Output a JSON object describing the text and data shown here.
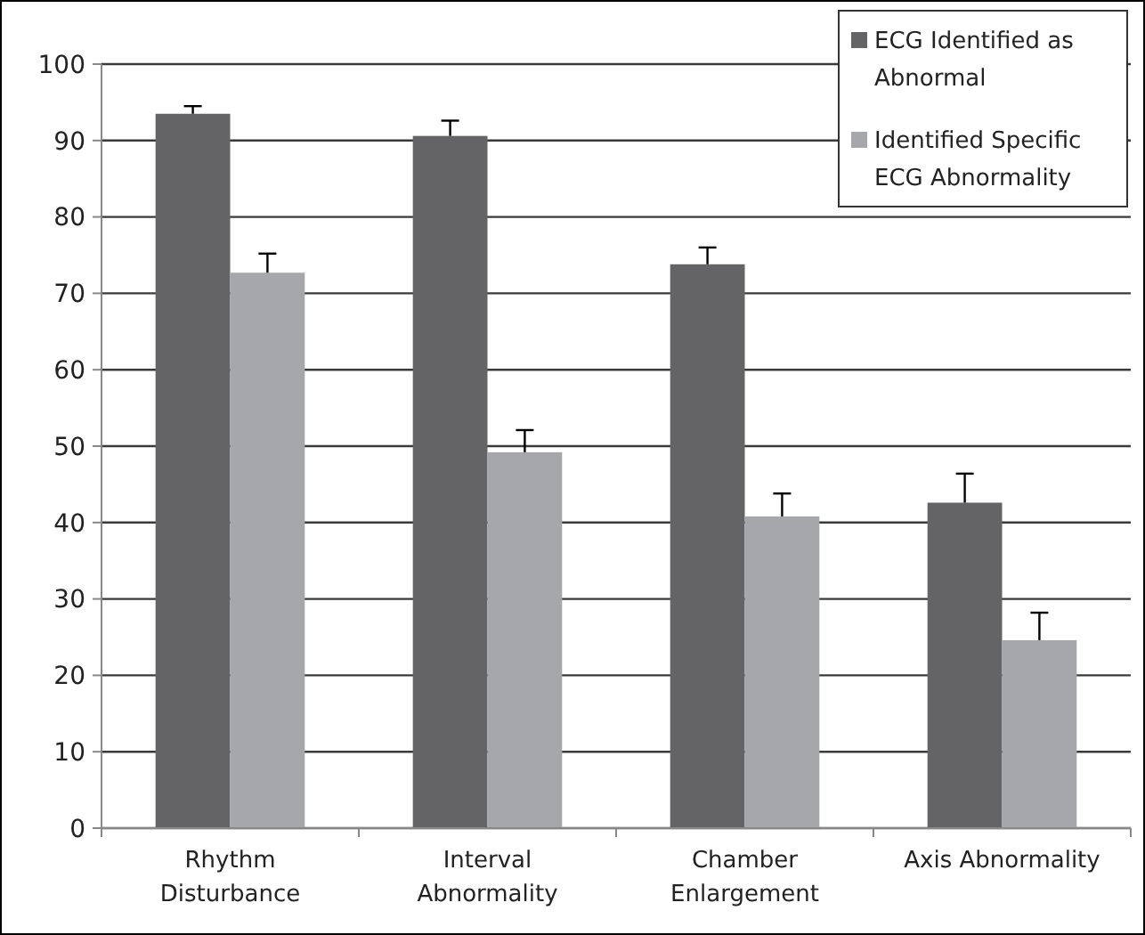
{
  "chart_data": {
    "type": "bar",
    "categories": [
      "Rhythm Disturbance",
      "Interval Abnormality",
      "Chamber Enlargement",
      "Axis Abnormality"
    ],
    "series": [
      {
        "name": "ECG Identified as Abnormal",
        "color": "#646466",
        "values": [
          93.5,
          90.6,
          73.8,
          42.6
        ],
        "errors": [
          [
            93.5,
            94.5
          ],
          [
            90.6,
            92.6
          ],
          [
            73.8,
            76
          ],
          [
            42.6,
            46.4
          ]
        ]
      },
      {
        "name": "Identified Specific ECG Abnormality",
        "color": "#a6a7aa",
        "values": [
          72.7,
          49.2,
          40.8,
          24.6
        ],
        "errors": [
          [
            72.7,
            75.2
          ],
          [
            49.2,
            52.1
          ],
          [
            40.8,
            43.8
          ],
          [
            24.6,
            28.2
          ]
        ]
      }
    ],
    "ylim": [
      0,
      100
    ],
    "yticks": [
      0,
      10,
      20,
      30,
      40,
      50,
      60,
      70,
      80,
      90,
      100
    ],
    "grid": "y",
    "legend": "top right"
  }
}
